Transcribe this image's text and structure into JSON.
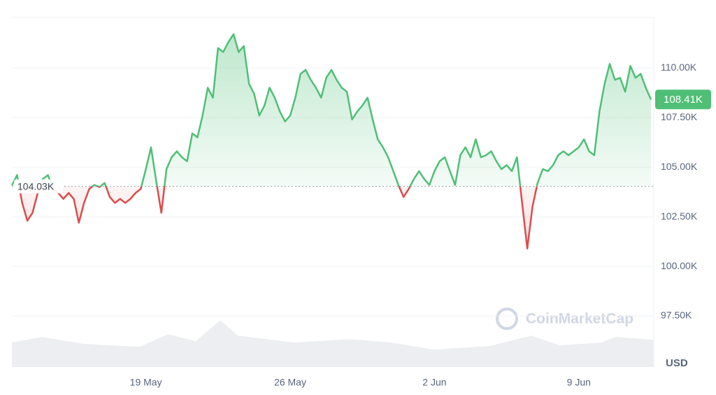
{
  "chart_data": {
    "type": "line",
    "categories": [
      null,
      null,
      null,
      null,
      null,
      null,
      null,
      null,
      null,
      null,
      null,
      null,
      null,
      null,
      null,
      null,
      null,
      null,
      null,
      null,
      null,
      null,
      null,
      null,
      null,
      null,
      "19 May",
      null,
      null,
      null,
      null,
      null,
      null,
      null,
      null,
      null,
      null,
      null,
      null,
      null,
      null,
      null,
      null,
      null,
      null,
      null,
      null,
      null,
      null,
      null,
      null,
      null,
      null,
      null,
      "26 May",
      null,
      null,
      null,
      null,
      null,
      null,
      null,
      null,
      null,
      null,
      null,
      null,
      null,
      null,
      null,
      null,
      null,
      null,
      null,
      null,
      null,
      null,
      null,
      null,
      null,
      null,
      null,
      "2 Jun",
      null,
      null,
      null,
      null,
      null,
      null,
      null,
      null,
      null,
      null,
      null,
      null,
      null,
      null,
      null,
      null,
      null,
      null,
      null,
      null,
      null,
      null,
      null,
      null,
      null,
      null,
      null,
      "9 Jun",
      null,
      null,
      null,
      null,
      null,
      null,
      null,
      null,
      null,
      null,
      null,
      null,
      null,
      null
    ],
    "series": [
      {
        "values": [
          104080,
          104600,
          103200,
          102300,
          102700,
          103700,
          104400,
          104600,
          103900,
          103700,
          103400,
          103700,
          103400,
          102200,
          103200,
          103900,
          104100,
          104000,
          104200,
          103500,
          103200,
          103400,
          103200,
          103400,
          103700,
          103900,
          104900,
          106000,
          104300,
          102700,
          104900,
          105500,
          105800,
          105500,
          105300,
          106700,
          106500,
          107600,
          109000,
          108500,
          111000,
          110800,
          111300,
          111700,
          110800,
          111100,
          109200,
          108700,
          107600,
          108100,
          109000,
          108500,
          107800,
          107300,
          107600,
          108500,
          109700,
          109900,
          109400,
          109000,
          108500,
          109500,
          109900,
          109400,
          109000,
          108800,
          107400,
          107800,
          108100,
          108500,
          107400,
          106400,
          106000,
          105500,
          104800,
          104100,
          103500,
          103900,
          104400,
          104800,
          104400,
          104100,
          104800,
          105300,
          105500,
          104800,
          104100,
          105600,
          106000,
          105500,
          106400,
          105500,
          105600,
          105800,
          105300,
          104900,
          105100,
          104800,
          105500,
          103200,
          100900,
          103000,
          104200,
          104900,
          104800,
          105100,
          105600,
          105800,
          105600,
          105800,
          106000,
          106400,
          105800,
          105600,
          107800,
          109200,
          110200,
          109400,
          109500,
          108800,
          110100,
          109500,
          109700,
          109000,
          108410
        ]
      }
    ],
    "up_color": "#4fbf76",
    "down_color": "#d94d4d",
    "baseline": {
      "value": 104030,
      "label": "104.03K"
    },
    "current": {
      "value": 108410,
      "label": "108.41K"
    },
    "ylim": [
      94930,
      112540
    ],
    "yticks": [
      {
        "value": 97500,
        "label": "97.50K"
      },
      {
        "value": 100000,
        "label": "100.00K"
      },
      {
        "value": 102500,
        "label": "102.50K"
      },
      {
        "value": 105000,
        "label": "105.00K"
      },
      {
        "value": 107500,
        "label": "107.50K"
      },
      {
        "value": 110000,
        "label": "110.00K"
      }
    ],
    "grid": true,
    "unit_label": "USD",
    "watermark": "CoinMarketCap"
  }
}
